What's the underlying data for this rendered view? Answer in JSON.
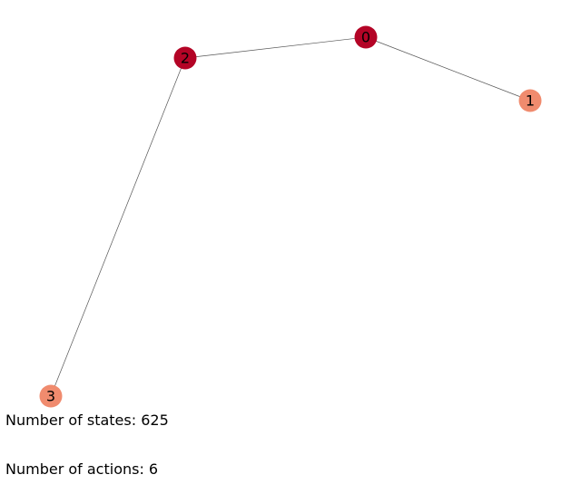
{
  "colors": {
    "high": "#b40426",
    "low": "#f08b6e",
    "edge": "#555555",
    "background": "#ffffff"
  },
  "graph": {
    "nodes": [
      {
        "id": "0",
        "label": "0",
        "color": "#b40426"
      },
      {
        "id": "1",
        "label": "1",
        "color": "#f08b6e"
      },
      {
        "id": "2",
        "label": "2",
        "color": "#b40426"
      },
      {
        "id": "3",
        "label": "3",
        "color": "#f08b6e"
      }
    ],
    "edges": [
      {
        "source": "0",
        "target": "2"
      },
      {
        "source": "0",
        "target": "1"
      },
      {
        "source": "2",
        "target": "3"
      }
    ]
  },
  "info": {
    "states_text": "Number of states: 625",
    "actions_text": "Number of actions: 6"
  }
}
